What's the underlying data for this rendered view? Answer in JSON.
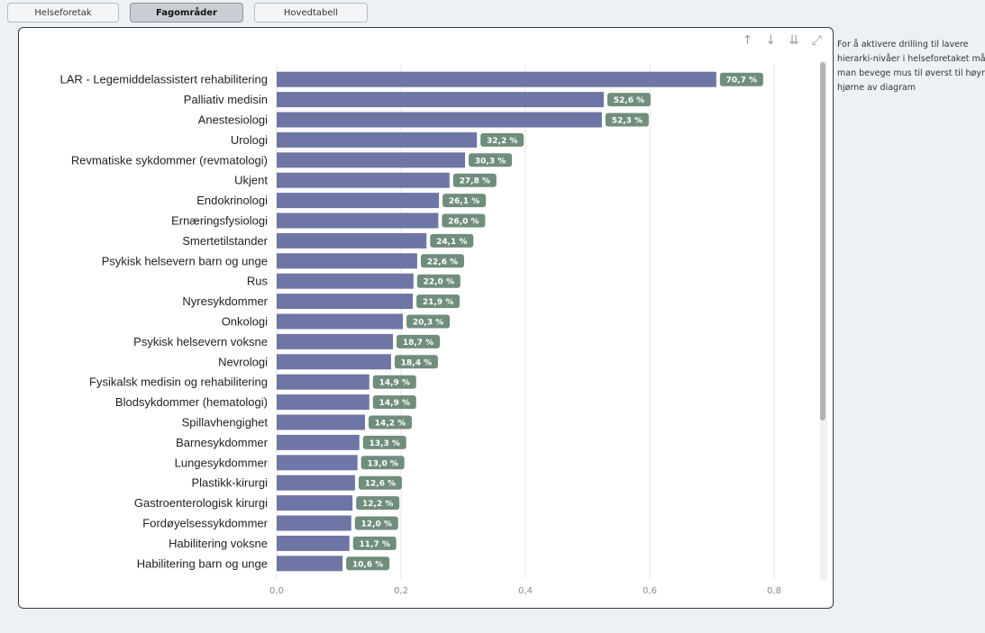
{
  "tabs": [
    "Helseforetak",
    "Fagområder",
    "Hovedtabell"
  ],
  "active_tab": "Fagområder",
  "toolbar": {
    "icons": [
      "arrow-up-icon",
      "arrow-down-icon",
      "double-arrow-down-icon",
      "expand-icon"
    ],
    "glyphs": [
      "↑",
      "↓",
      "⇊",
      "⤢"
    ]
  },
  "note": {
    "text": "For å aktivere drilling til lavere hierarki-nivåer i helseforetaket må man bevege mus til øverst til høyre hjørne av diagram"
  },
  "colors": {
    "bar": "#6e76a5",
    "label_bg": "#6f8e7b",
    "grid": "#e6e6e6"
  },
  "chart_data": {
    "type": "bar",
    "orientation": "horizontal",
    "categories": [
      "LAR - Legemiddelassistert rehabilitering",
      "Palliativ medisin",
      "Anestesiologi",
      "Urologi",
      "Revmatiske sykdommer (revmatologi)",
      "Ukjent",
      "Endokrinologi",
      "Ernæringsfysiologi",
      "Smertetilstander",
      "Psykisk helsevern barn og unge",
      "Rus",
      "Nyresykdommer",
      "Onkologi",
      "Psykisk helsevern voksne",
      "Nevrologi",
      "Fysikalsk medisin og rehabilitering",
      "Blodsykdommer (hematologi)",
      "Spillavhengighet",
      "Barnesykdommer",
      "Lungesykdommer",
      "Plastikk-kirurgi",
      "Gastroenterologisk kirurgi",
      "Fordøyelsessykdommer",
      "Habilitering voksne",
      "Habilitering barn og unge"
    ],
    "values": [
      0.707,
      0.526,
      0.523,
      0.322,
      0.303,
      0.278,
      0.261,
      0.26,
      0.241,
      0.226,
      0.22,
      0.219,
      0.203,
      0.187,
      0.184,
      0.149,
      0.149,
      0.142,
      0.133,
      0.13,
      0.126,
      0.122,
      0.12,
      0.117,
      0.106
    ],
    "value_labels": [
      "70,7 %",
      "52,6 %",
      "52,3 %",
      "32,2 %",
      "30,3 %",
      "27,8 %",
      "26,1 %",
      "26,0 %",
      "24,1 %",
      "22,6 %",
      "22,0 %",
      "21,9 %",
      "20,3 %",
      "18,7 %",
      "18,4 %",
      "14,9 %",
      "14,9 %",
      "14,2 %",
      "13,3 %",
      "13,0 %",
      "12,6 %",
      "12,2 %",
      "12,0 %",
      "11,7 %",
      "10,6 %"
    ],
    "xticks": [
      0,
      0.2,
      0.4,
      0.6,
      0.8
    ],
    "xtick_labels": [
      "0,0",
      "0,2",
      "0,4",
      "0,6",
      "0,8"
    ],
    "xlim": [
      0,
      0.85
    ],
    "grid": true
  }
}
